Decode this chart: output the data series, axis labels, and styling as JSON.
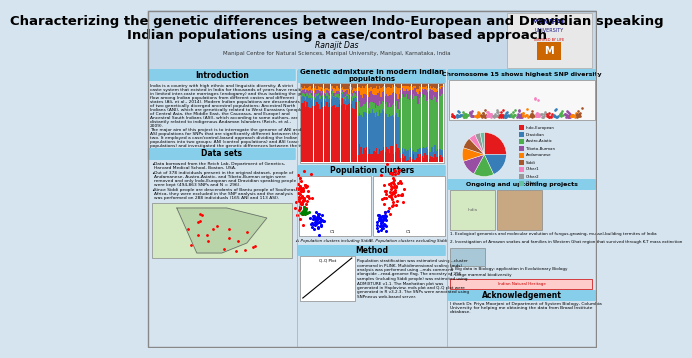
{
  "title_line1": "Characterizing the genetic differences between Indo-European and Dravidian speaking",
  "title_line2": "Indian populations using a case/control based approach",
  "author": "Ranajit Das",
  "affiliation": "Manipal Centre for Natural Sciences, Manipal University, Manipal, Karnataka, India",
  "bg_color": "#d6e4f0",
  "header_bg": "#c8daea",
  "title_color": "#000000",
  "section_header_bg": "#add8e6",
  "section_header_color": "#000000",
  "title_fontsize": 9.5,
  "author_fontsize": 5.5,
  "affil_fontsize": 4.5,
  "section_header_fontsize": 5.5,
  "body_fontsize": 3.8,
  "datasets_title": "Data sets",
  "section2_title": "Genetic admixture in modern Indian\npopulations",
  "section3_title": "Chromosome 15 shows highest SNP diversity",
  "section4_title": "Population clusters",
  "section5_title": "Ongoing and upcoming projects",
  "method_title": "Method",
  "ack_title": "Acknowledgement",
  "ack_text": "I thank Dr. Priya Moorjani of Department of System Biology, Columbia University for helping me obtaining the data from Broad Institute database.",
  "ongoing_items": [
    "1. Ecological genomics and molecular evolution of fungus-growing, mussel-building termites of India",
    "2. Investigation of Amazon snakes and families in Western Ghat region that survived through K-T mass extinction",
    "3. Big data in Biology: application in Evolutionary Biology",
    "4. Large mammal biodiversity"
  ],
  "subA_label": "A. Population clusters including Siddi",
  "subB_label": "B. Population clusters excluding Siddi"
}
